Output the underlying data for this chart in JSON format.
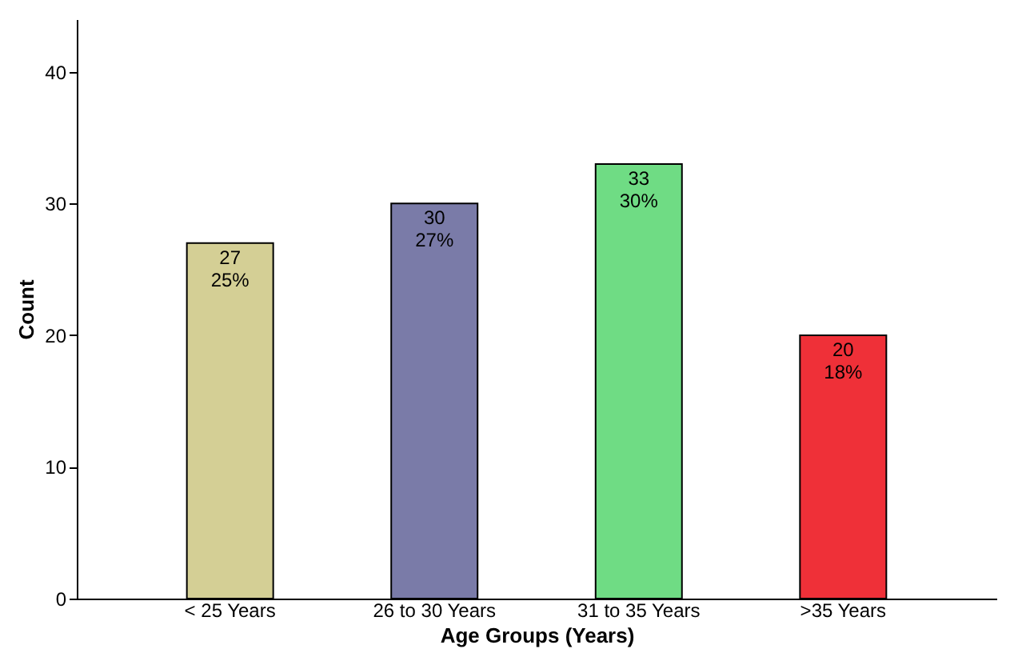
{
  "chart_data": {
    "type": "bar",
    "xlabel": "Age Groups (Years)",
    "ylabel": "Count",
    "categories": [
      "< 25 Years",
      "26 to 30 Years",
      "31 to 35 Years",
      ">35 Years"
    ],
    "values": [
      27,
      30,
      33,
      20
    ],
    "colors": [
      "#d4cf95",
      "#7a7ba8",
      "#6fdc84",
      "#ef3038"
    ],
    "value_labels": [
      "27\n25%",
      "30\n27%",
      "33\n30%",
      "20\n18%"
    ],
    "ylim": [
      0,
      44
    ],
    "yticks": [
      0,
      10,
      20,
      30,
      40
    ],
    "grid": false
  }
}
